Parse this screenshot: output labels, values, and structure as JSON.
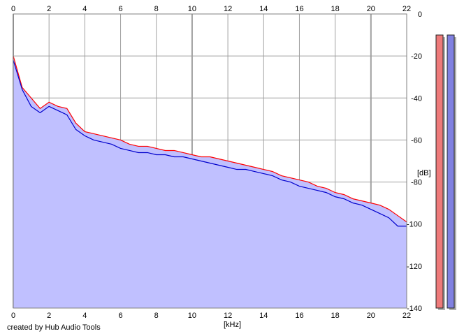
{
  "chart_data": {
    "type": "area",
    "xlabel": "[kHz]",
    "ylabel": "[dB]",
    "xlim": [
      0,
      22
    ],
    "ylim": [
      -140,
      0
    ],
    "x_ticks": [
      "0",
      "2",
      "4",
      "6",
      "8",
      "10",
      "12",
      "14",
      "16",
      "18",
      "20",
      "22"
    ],
    "y_ticks": [
      "0",
      "-20",
      "-40",
      "-60",
      "-80",
      "-100",
      "-120",
      "-140"
    ],
    "grid": true,
    "series": [
      {
        "color": "#ff0000",
        "x": [
          0,
          0.5,
          1,
          1.5,
          2,
          2.5,
          3,
          3.5,
          4,
          4.5,
          5,
          5.5,
          6,
          6.5,
          7,
          7.5,
          8,
          8.5,
          9,
          9.5,
          10,
          10.5,
          11,
          11.5,
          12,
          12.5,
          13,
          13.5,
          14,
          14.5,
          15,
          15.5,
          16,
          16.5,
          17,
          17.5,
          18,
          18.5,
          19,
          19.5,
          20,
          20.5,
          21,
          21.5,
          22
        ],
        "values": [
          -20,
          -35,
          -40,
          -45,
          -42,
          -44,
          -45,
          -52,
          -56,
          -57,
          -58,
          -59,
          -60,
          -62,
          -63,
          -63,
          -64,
          -65,
          -65,
          -66,
          -67,
          -68,
          -68,
          -69,
          -70,
          -71,
          -72,
          -73,
          -74,
          -75,
          -77,
          -78,
          -79,
          -80,
          -82,
          -83,
          -85,
          -86,
          -88,
          -89,
          -90,
          -91,
          -93,
          -96,
          -99
        ]
      },
      {
        "color": "#0000cc",
        "x": [
          0,
          0.5,
          1,
          1.5,
          2,
          2.5,
          3,
          3.5,
          4,
          4.5,
          5,
          5.5,
          6,
          6.5,
          7,
          7.5,
          8,
          8.5,
          9,
          9.5,
          10,
          10.5,
          11,
          11.5,
          12,
          12.5,
          13,
          13.5,
          14,
          14.5,
          15,
          15.5,
          16,
          16.5,
          17,
          17.5,
          18,
          18.5,
          19,
          19.5,
          20,
          20.5,
          21,
          21.5,
          22
        ],
        "values": [
          -22,
          -36,
          -44,
          -47,
          -44,
          -46,
          -48,
          -55,
          -58,
          -60,
          -61,
          -62,
          -64,
          -65,
          -66,
          -66,
          -67,
          -67,
          -68,
          -68,
          -69,
          -70,
          -71,
          -72,
          -73,
          -74,
          -74,
          -75,
          -76,
          -77,
          -79,
          -80,
          -82,
          -83,
          -84,
          -85,
          -87,
          -88,
          -90,
          -91,
          -93,
          -95,
          -97,
          -101,
          -101
        ]
      }
    ],
    "level_meters": [
      {
        "color": "#ee7a7a",
        "level_db": -10
      },
      {
        "color": "#8080e0",
        "level_db": -10
      }
    ]
  },
  "credit": "created by Hub Audio Tools"
}
